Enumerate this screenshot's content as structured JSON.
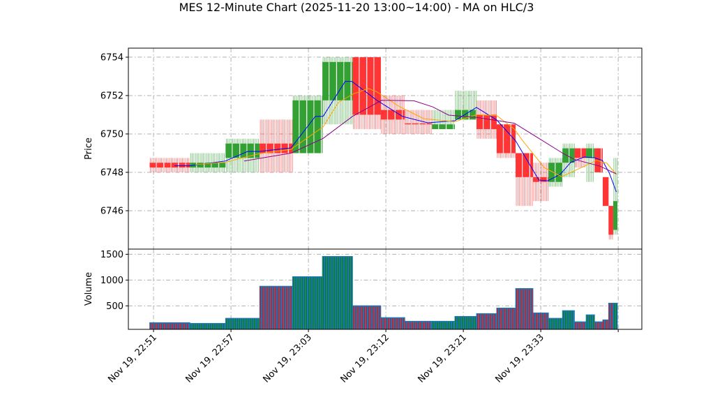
{
  "chart_data": {
    "type": "candlestick",
    "title": "MES 12-Minute Chart (2025-11-20 13:00~14:00) - MA on HLC/3",
    "price_panel": {
      "ylabel": "Price",
      "ylim": [
        6744.0,
        6754.47
      ],
      "yticks": [
        6746,
        6748,
        6750,
        6752,
        6754
      ],
      "grid": true
    },
    "volume_panel": {
      "ylabel": "Volume",
      "ylim": [
        45,
        1600
      ],
      "yticks": [
        500,
        1000,
        1500
      ],
      "grid": true
    },
    "x_axis": {
      "xlim": [
        -6.5,
        126.1
      ],
      "ticks": [
        {
          "index": 0,
          "label": "Nov 19, 22:51"
        },
        {
          "index": 20,
          "label": "Nov 19, 22:57"
        },
        {
          "index": 40,
          "label": "Nov 19, 23:03"
        },
        {
          "index": 60,
          "label": "Nov 19, 23:12"
        },
        {
          "index": 80,
          "label": "Nov 19, 23:21"
        },
        {
          "index": 100,
          "label": "Nov 19, 23:33"
        },
        {
          "index": 120,
          "label": ""
        }
      ]
    },
    "colors": {
      "up": "#33a033",
      "down": "#ff3535",
      "volume": "#1f77b4",
      "volume_up": "#008000",
      "volume_down": "#ff0000",
      "ma_fast": "#0000ff",
      "ma_mid": "#ffa500",
      "ma_slow": "#8b008b",
      "grid": "#b0b0b0"
    },
    "candles": [
      {
        "start": -1,
        "end": 9.4,
        "open": 6748.5,
        "high": 6748.75,
        "low": 6748.0,
        "close": 6748.25,
        "volume": 176
      },
      {
        "start": 9.4,
        "end": 18.6,
        "open": 6748.25,
        "high": 6749.0,
        "low": 6748.0,
        "close": 6748.5,
        "volume": 162
      },
      {
        "start": 18.6,
        "end": 27.4,
        "open": 6748.75,
        "high": 6749.75,
        "low": 6748.0,
        "close": 6749.5,
        "volume": 261
      },
      {
        "start": 27.4,
        "end": 35.9,
        "open": 6749.5,
        "high": 6750.75,
        "low": 6748.0,
        "close": 6749.0,
        "volume": 882
      },
      {
        "start": 35.9,
        "end": 43.6,
        "open": 6749.0,
        "high": 6752.0,
        "low": 6749.0,
        "close": 6751.75,
        "volume": 1067
      },
      {
        "start": 43.6,
        "end": 51.4,
        "open": 6751.75,
        "high": 6754.0,
        "low": 6750.5,
        "close": 6753.75,
        "volume": 1459
      },
      {
        "start": 51.4,
        "end": 58.7,
        "open": 6754.0,
        "high": 6754.0,
        "low": 6750.25,
        "close": 6751.0,
        "volume": 504
      },
      {
        "start": 58.7,
        "end": 64.9,
        "open": 6751.25,
        "high": 6752.0,
        "low": 6750.0,
        "close": 6750.75,
        "volume": 274
      },
      {
        "start": 64.9,
        "end": 71.9,
        "open": 6750.55,
        "high": 6751.25,
        "low": 6750.0,
        "close": 6750.5,
        "volume": 203
      },
      {
        "start": 71.9,
        "end": 77.8,
        "open": 6750.25,
        "high": 6751.25,
        "low": 6750.25,
        "close": 6750.5,
        "volume": 203
      },
      {
        "start": 77.8,
        "end": 83.4,
        "open": 6750.75,
        "high": 6752.25,
        "low": 6750.75,
        "close": 6751.25,
        "volume": 297
      },
      {
        "start": 83.4,
        "end": 88.6,
        "open": 6751.0,
        "high": 6751.75,
        "low": 6749.75,
        "close": 6750.25,
        "volume": 351
      },
      {
        "start": 88.6,
        "end": 93.5,
        "open": 6750.5,
        "high": 6750.5,
        "low": 6748.75,
        "close": 6749.0,
        "volume": 459
      },
      {
        "start": 93.5,
        "end": 98.0,
        "open": 6749.0,
        "high": 6749.0,
        "low": 6746.25,
        "close": 6747.75,
        "volume": 838
      },
      {
        "start": 98.0,
        "end": 102.0,
        "open": 6747.75,
        "high": 6748.5,
        "low": 6746.5,
        "close": 6747.5,
        "volume": 365
      },
      {
        "start": 102.0,
        "end": 105.6,
        "open": 6747.5,
        "high": 6748.75,
        "low": 6747.25,
        "close": 6748.5,
        "volume": 261
      },
      {
        "start": 105.6,
        "end": 108.7,
        "open": 6748.5,
        "high": 6749.5,
        "low": 6747.75,
        "close": 6749.25,
        "volume": 409
      },
      {
        "start": 108.7,
        "end": 111.7,
        "open": 6749.25,
        "high": 6749.25,
        "low": 6748.25,
        "close": 6748.75,
        "volume": 193
      },
      {
        "start": 111.7,
        "end": 113.9,
        "open": 6748.75,
        "high": 6749.5,
        "low": 6747.5,
        "close": 6749.25,
        "volume": 328
      },
      {
        "start": 113.9,
        "end": 116.0,
        "open": 6749.25,
        "high": 6749.25,
        "low": 6748.0,
        "close": 6748.0,
        "volume": 193
      },
      {
        "start": 116.0,
        "end": 117.5,
        "open": 6747.75,
        "high": 6747.75,
        "low": 6746.25,
        "close": 6746.25,
        "volume": 230
      },
      {
        "start": 117.5,
        "end": 118.7,
        "open": 6746.25,
        "high": 6746.25,
        "low": 6744.5,
        "close": 6744.75,
        "volume": 554
      },
      {
        "start": 118.7,
        "end": 119.8,
        "open": 6745.0,
        "high": 6748.75,
        "low": 6744.75,
        "close": 6746.5,
        "volume": 554
      }
    ],
    "moving_averages": [
      {
        "key": "ma_fast",
        "points": [
          [
            5.4,
            6748.34
          ],
          [
            9.4,
            6748.34
          ],
          [
            18.6,
            6748.59
          ],
          [
            24.3,
            6749.09
          ],
          [
            27.4,
            6749.09
          ],
          [
            35.5,
            6749.27
          ],
          [
            41.8,
            6750.92
          ],
          [
            43.8,
            6750.92
          ],
          [
            49.5,
            6752.74
          ],
          [
            51.2,
            6752.74
          ],
          [
            57.7,
            6751.75
          ],
          [
            64.3,
            6750.91
          ],
          [
            70.8,
            6750.58
          ],
          [
            77.8,
            6750.69
          ],
          [
            83.4,
            6751.38
          ],
          [
            88.6,
            6750.73
          ],
          [
            93.5,
            6749.64
          ],
          [
            99.5,
            6747.6
          ],
          [
            101.8,
            6747.56
          ],
          [
            105,
            6747.89
          ],
          [
            107.7,
            6748.51
          ],
          [
            111.2,
            6748.8
          ],
          [
            113.9,
            6748.76
          ],
          [
            115.9,
            6748.62
          ],
          [
            117.7,
            6747.96
          ],
          [
            119.5,
            6746.98
          ]
        ]
      },
      {
        "key": "ma_mid",
        "points": [
          [
            10.8,
            6748.4
          ],
          [
            18.6,
            6748.53
          ],
          [
            27.0,
            6748.96
          ],
          [
            35.5,
            6749.2
          ],
          [
            43.8,
            6750.37
          ],
          [
            47.7,
            6751.63
          ],
          [
            51.4,
            6752.07
          ],
          [
            55.5,
            6752.37
          ],
          [
            57.7,
            6752.19
          ],
          [
            63.1,
            6751.47
          ],
          [
            69.7,
            6750.8
          ],
          [
            77.8,
            6750.64
          ],
          [
            83.4,
            6751.0
          ],
          [
            88.6,
            6750.96
          ],
          [
            93.2,
            6750.25
          ],
          [
            95.5,
            6749.6
          ],
          [
            100.9,
            6748.25
          ],
          [
            105.4,
            6747.77
          ],
          [
            110.5,
            6748.25
          ],
          [
            114.4,
            6748.62
          ],
          [
            117.1,
            6748.47
          ],
          [
            119.5,
            6747.89
          ]
        ]
      },
      {
        "key": "ma_slow",
        "points": [
          [
            23.4,
            6748.59
          ],
          [
            35.5,
            6749.0
          ],
          [
            43.8,
            6749.77
          ],
          [
            51.4,
            6750.92
          ],
          [
            58.9,
            6751.75
          ],
          [
            67.2,
            6751.73
          ],
          [
            72.1,
            6751.41
          ],
          [
            76.2,
            6750.98
          ],
          [
            83.4,
            6750.86
          ],
          [
            93.2,
            6750.56
          ],
          [
            105.8,
            6748.98
          ],
          [
            108.6,
            6748.68
          ],
          [
            115.3,
            6748.32
          ],
          [
            119.5,
            6747.92
          ]
        ]
      }
    ]
  }
}
